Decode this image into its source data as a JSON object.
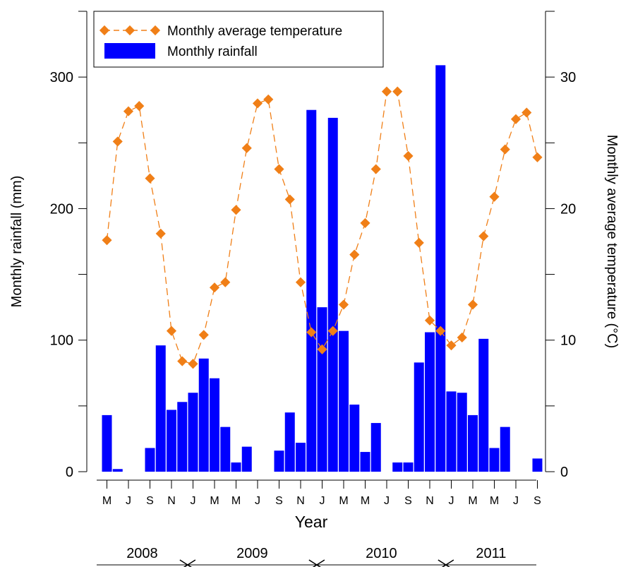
{
  "chart_data": {
    "type": "bar",
    "xlabel": "Year",
    "ylabel_left": "Monthly rainfall (mm)",
    "ylabel_right": "Monthly average temperature (°C)",
    "ylim_left": [
      0,
      350
    ],
    "ylim_right": [
      0,
      35
    ],
    "yticks_left": [
      0,
      100,
      200,
      300
    ],
    "yticks_right": [
      0,
      10,
      20,
      30
    ],
    "grid": false,
    "legend_position": "top-left",
    "months": [
      "May 2008",
      "Jun 2008",
      "Jul 2008",
      "Aug 2008",
      "Sep 2008",
      "Oct 2008",
      "Nov 2008",
      "Dec 2008",
      "Jan 2009",
      "Feb 2009",
      "Mar 2009",
      "Apr 2009",
      "May 2009",
      "Jun 2009",
      "Jul 2009",
      "Aug 2009",
      "Sep 2009",
      "Oct 2009",
      "Nov 2009",
      "Dec 2009",
      "Jan 2010",
      "Feb 2010",
      "Mar 2010",
      "Apr 2010",
      "May 2010",
      "Jun 2010",
      "Jul 2010",
      "Aug 2010",
      "Sep 2010",
      "Oct 2010",
      "Nov 2010",
      "Dec 2010",
      "Jan 2011",
      "Feb 2011",
      "Mar 2011",
      "Apr 2011",
      "May 2011",
      "Jun 2011",
      "Jul 2011",
      "Aug 2011",
      "Sep 2011"
    ],
    "tick_labels": [
      {
        "index": 0,
        "label": "M"
      },
      {
        "index": 2,
        "label": "J"
      },
      {
        "index": 4,
        "label": "S"
      },
      {
        "index": 6,
        "label": "N"
      },
      {
        "index": 8,
        "label": "J"
      },
      {
        "index": 10,
        "label": "M"
      },
      {
        "index": 12,
        "label": "M"
      },
      {
        "index": 14,
        "label": "J"
      },
      {
        "index": 16,
        "label": "S"
      },
      {
        "index": 18,
        "label": "N"
      },
      {
        "index": 20,
        "label": "J"
      },
      {
        "index": 22,
        "label": "M"
      },
      {
        "index": 24,
        "label": "M"
      },
      {
        "index": 26,
        "label": "J"
      },
      {
        "index": 28,
        "label": "S"
      },
      {
        "index": 30,
        "label": "N"
      },
      {
        "index": 32,
        "label": "J"
      },
      {
        "index": 34,
        "label": "M"
      },
      {
        "index": 36,
        "label": "M"
      },
      {
        "index": 38,
        "label": "J"
      },
      {
        "index": 40,
        "label": "S"
      }
    ],
    "year_labels": [
      "2008",
      "2009",
      "2010",
      "2011"
    ],
    "year_dividers_after_index": [
      7,
      19,
      31
    ],
    "series": [
      {
        "name": "Monthly rainfall",
        "type": "bar",
        "axis": "left",
        "color": "#0000FF",
        "values": [
          43,
          2,
          0,
          0,
          18,
          96,
          47,
          53,
          60,
          86,
          71,
          34,
          7,
          19,
          0,
          0,
          16,
          45,
          22,
          275,
          125,
          269,
          107,
          51,
          15,
          37,
          0,
          7,
          7,
          83,
          106,
          309,
          61,
          60,
          43,
          101,
          18,
          34,
          0,
          0,
          10
        ]
      },
      {
        "name": "Monthly average temperature",
        "type": "line",
        "axis": "right",
        "color": "#F07F17",
        "values": [
          17.6,
          25.1,
          27.4,
          27.8,
          22.3,
          18.1,
          10.7,
          8.4,
          8.2,
          10.4,
          14.0,
          14.4,
          19.9,
          24.6,
          28.0,
          28.3,
          23.0,
          20.7,
          14.4,
          10.6,
          9.3,
          10.7,
          12.7,
          16.5,
          18.9,
          23.0,
          28.9,
          28.9,
          24.0,
          17.4,
          11.5,
          10.7,
          9.6,
          10.2,
          12.7,
          17.9,
          20.9,
          24.5,
          26.8,
          27.3,
          23.9
        ]
      }
    ]
  }
}
